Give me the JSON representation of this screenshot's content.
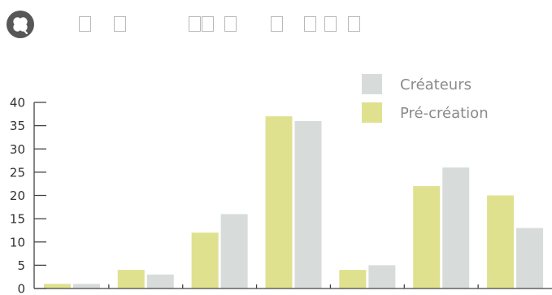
{
  "header": {
    "logo_icon": "clover-icon",
    "placeholder_glyph_groups": [
      2,
      2,
      4
    ]
  },
  "chart_data": {
    "type": "bar",
    "categories": [
      "",
      "",
      "",
      "",
      "",
      "",
      ""
    ],
    "series": [
      {
        "name": "Pré-création",
        "color": "#dfe18f",
        "values": [
          1,
          4,
          12,
          37,
          4,
          22,
          20
        ]
      },
      {
        "name": "Créateurs",
        "color": "#d7dcda",
        "values": [
          1,
          3,
          16,
          36,
          5,
          26,
          13
        ]
      }
    ],
    "ylim": [
      0,
      40
    ],
    "yticks": [
      0,
      5,
      10,
      15,
      20,
      25,
      30,
      35,
      40
    ],
    "legend": {
      "placement": "top-right",
      "entries": [
        "Créateurs",
        "Pré-création"
      ]
    },
    "title": "",
    "xlabel": "",
    "ylabel": "",
    "grid": false,
    "axis_color": "#444444",
    "tick_label_color": "#333333",
    "legend_text_color": "#8a8a8a"
  }
}
